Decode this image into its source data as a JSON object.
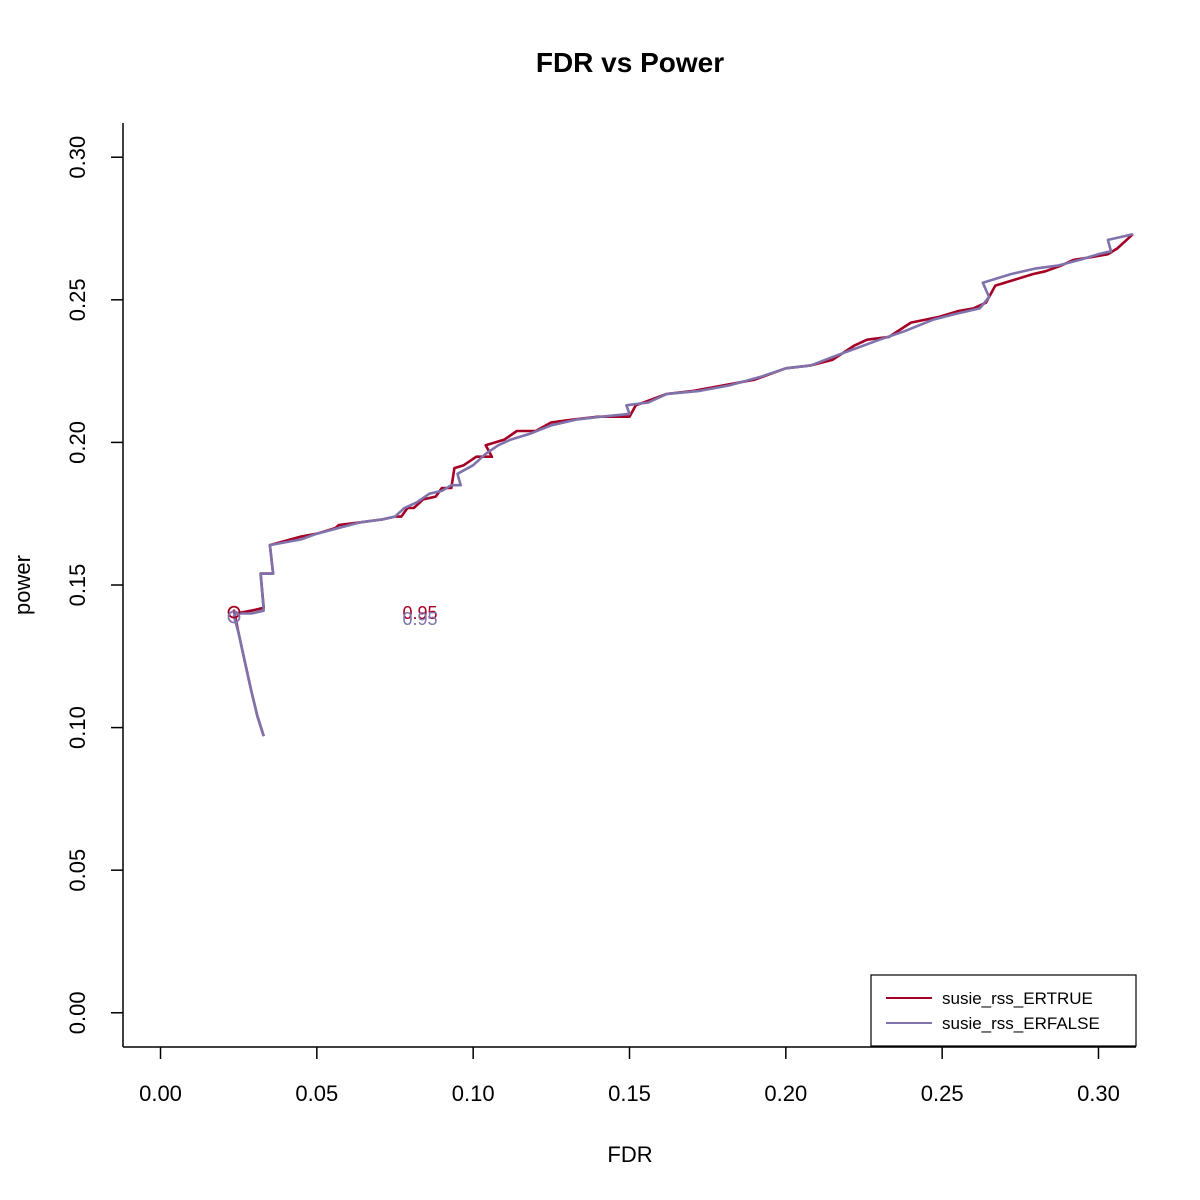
{
  "chart_data": {
    "type": "line",
    "title": "FDR vs Power",
    "xlabel": "FDR",
    "ylabel": "power",
    "xlim": [
      -0.012,
      0.312
    ],
    "ylim": [
      -0.012,
      0.312
    ],
    "x_ticks": [
      0.0,
      0.05,
      0.1,
      0.15,
      0.2,
      0.25,
      0.3
    ],
    "x_tick_labels": [
      "0.00",
      "0.05",
      "0.10",
      "0.15",
      "0.20",
      "0.25",
      "0.30"
    ],
    "y_ticks": [
      0.0,
      0.05,
      0.1,
      0.15,
      0.2,
      0.25,
      0.3
    ],
    "y_tick_labels": [
      "0.00",
      "0.05",
      "0.10",
      "0.15",
      "0.20",
      "0.25",
      "0.30"
    ],
    "legend_position": "bottom-right",
    "series": [
      {
        "name": "susie_rss_ERTRUE",
        "color": "#a50026",
        "x": [
          0.033,
          0.031,
          0.029,
          0.027,
          0.025,
          0.0235,
          0.024,
          0.029,
          0.033,
          0.032,
          0.036,
          0.035,
          0.045,
          0.05,
          0.056,
          0.057,
          0.064,
          0.071,
          0.075,
          0.077,
          0.079,
          0.081,
          0.084,
          0.088,
          0.09,
          0.093,
          0.094,
          0.097,
          0.101,
          0.106,
          0.104,
          0.11,
          0.114,
          0.12,
          0.125,
          0.132,
          0.14,
          0.15,
          0.152,
          0.157,
          0.162,
          0.17,
          0.18,
          0.19,
          0.2,
          0.208,
          0.215,
          0.222,
          0.226,
          0.233,
          0.24,
          0.249,
          0.255,
          0.26,
          0.264,
          0.267,
          0.273,
          0.279,
          0.283,
          0.288,
          0.292,
          0.298,
          0.303,
          0.306,
          0.311
        ],
        "y": [
          0.097,
          0.104,
          0.113,
          0.123,
          0.133,
          0.141,
          0.14,
          0.141,
          0.142,
          0.154,
          0.154,
          0.164,
          0.167,
          0.168,
          0.17,
          0.171,
          0.172,
          0.173,
          0.174,
          0.174,
          0.177,
          0.177,
          0.18,
          0.181,
          0.184,
          0.184,
          0.191,
          0.192,
          0.195,
          0.195,
          0.199,
          0.201,
          0.204,
          0.204,
          0.207,
          0.208,
          0.209,
          0.209,
          0.213,
          0.215,
          0.217,
          0.218,
          0.22,
          0.222,
          0.226,
          0.227,
          0.229,
          0.234,
          0.236,
          0.237,
          0.242,
          0.244,
          0.246,
          0.247,
          0.249,
          0.255,
          0.257,
          0.259,
          0.26,
          0.262,
          0.264,
          0.265,
          0.266,
          0.268,
          0.273
        ]
      },
      {
        "name": "susie_rss_ERFALSE",
        "color": "#8073ac",
        "x": [
          0.033,
          0.031,
          0.029,
          0.027,
          0.025,
          0.0235,
          0.024,
          0.029,
          0.033,
          0.032,
          0.036,
          0.035,
          0.045,
          0.05,
          0.057,
          0.064,
          0.071,
          0.075,
          0.078,
          0.082,
          0.086,
          0.09,
          0.093,
          0.096,
          0.095,
          0.1,
          0.104,
          0.108,
          0.112,
          0.118,
          0.125,
          0.133,
          0.141,
          0.15,
          0.149,
          0.156,
          0.162,
          0.172,
          0.182,
          0.192,
          0.2,
          0.208,
          0.215,
          0.22,
          0.23,
          0.238,
          0.247,
          0.254,
          0.262,
          0.265,
          0.263,
          0.266,
          0.272,
          0.28,
          0.287,
          0.294,
          0.3,
          0.304,
          0.303,
          0.307,
          0.311
        ],
        "y": [
          0.097,
          0.104,
          0.113,
          0.123,
          0.133,
          0.139,
          0.14,
          0.14,
          0.141,
          0.154,
          0.154,
          0.164,
          0.166,
          0.168,
          0.17,
          0.172,
          0.173,
          0.174,
          0.177,
          0.179,
          0.182,
          0.183,
          0.185,
          0.185,
          0.189,
          0.192,
          0.196,
          0.199,
          0.201,
          0.203,
          0.206,
          0.208,
          0.209,
          0.21,
          0.213,
          0.214,
          0.217,
          0.218,
          0.22,
          0.223,
          0.226,
          0.227,
          0.23,
          0.232,
          0.236,
          0.239,
          0.243,
          0.245,
          0.247,
          0.251,
          0.256,
          0.257,
          0.259,
          0.261,
          0.262,
          0.264,
          0.266,
          0.267,
          0.271,
          0.272,
          0.273
        ]
      }
    ],
    "markers": [
      {
        "series": "susie_rss_ERTRUE",
        "x": 0.0235,
        "y": 0.1405,
        "color": "#a50026"
      },
      {
        "series": "susie_rss_ERFALSE",
        "x": 0.0235,
        "y": 0.1388,
        "color": "#8073ac"
      }
    ],
    "annotations": [
      {
        "text": "0.95",
        "x": 0.083,
        "y": 0.1405,
        "color": "#a50026"
      },
      {
        "text": "0.95",
        "x": 0.083,
        "y": 0.1385,
        "color": "#8073ac"
      }
    ]
  }
}
